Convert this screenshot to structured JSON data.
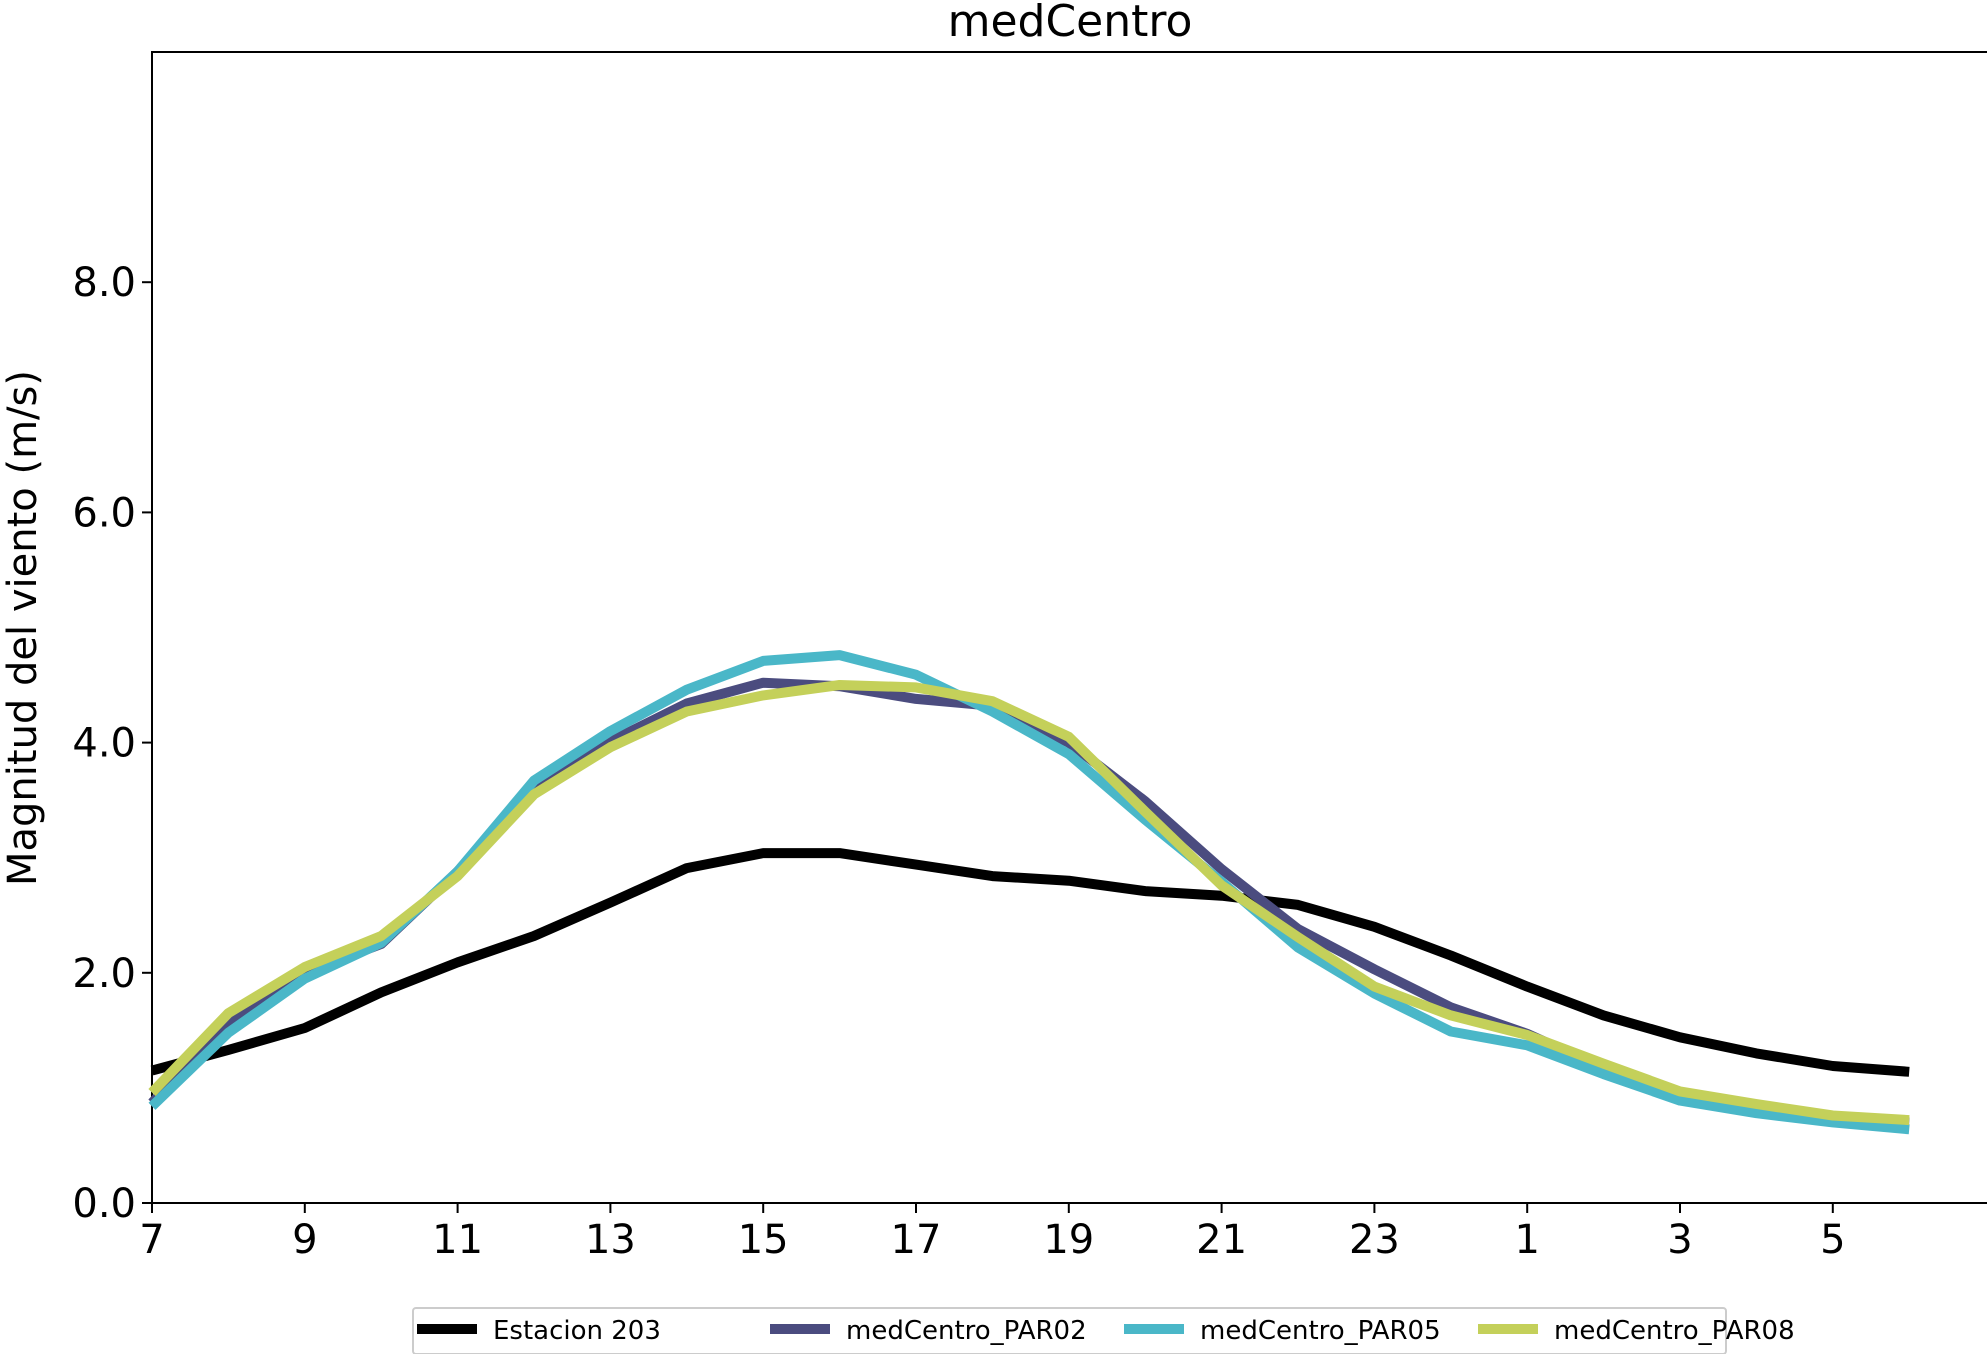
{
  "chart_data": {
    "type": "line",
    "title": "medCentro",
    "xlabel": "",
    "ylabel": "Magnitud del viento (m/s)",
    "x": [
      7,
      8,
      9,
      10,
      11,
      12,
      13,
      14,
      15,
      16,
      17,
      18,
      19,
      20,
      21,
      22,
      23,
      24,
      1,
      2,
      3,
      4,
      5,
      6
    ],
    "x_ticks": [
      "7",
      "9",
      "11",
      "13",
      "15",
      "17",
      "19",
      "21",
      "23",
      "1",
      "3",
      "5"
    ],
    "y_ticks": [
      "0.0",
      "2.0",
      "4.0",
      "6.0",
      "8.0"
    ],
    "ylim": [
      0,
      10
    ],
    "grid": false,
    "legend_position": "bottom-center",
    "series": [
      {
        "name": "Estacion 203",
        "color": "#000000",
        "values": [
          1.15,
          1.33,
          1.52,
          1.83,
          2.09,
          2.32,
          2.61,
          2.91,
          3.04,
          3.04,
          2.94,
          2.84,
          2.8,
          2.71,
          2.67,
          2.59,
          2.4,
          2.15,
          1.88,
          1.63,
          1.44,
          1.3,
          1.19,
          1.14
        ]
      },
      {
        "name": "medCentro_PAR02",
        "color": "#4b4c7f",
        "values": [
          0.87,
          1.57,
          2.0,
          2.25,
          2.88,
          3.6,
          4.01,
          4.34,
          4.52,
          4.49,
          4.38,
          4.32,
          4.0,
          3.49,
          2.9,
          2.38,
          2.03,
          1.7,
          1.47,
          1.17,
          0.94,
          0.82,
          0.74,
          0.7
        ]
      },
      {
        "name": "medCentro_PAR05",
        "color": "#4ab7c8",
        "values": [
          0.84,
          1.48,
          1.95,
          2.26,
          2.88,
          3.67,
          4.1,
          4.46,
          4.71,
          4.76,
          4.59,
          4.27,
          3.9,
          3.33,
          2.79,
          2.22,
          1.82,
          1.49,
          1.37,
          1.12,
          0.89,
          0.78,
          0.7,
          0.64
        ]
      },
      {
        "name": "medCentro_PAR08",
        "color": "#c4d05a",
        "values": [
          0.96,
          1.65,
          2.05,
          2.32,
          2.84,
          3.55,
          3.96,
          4.27,
          4.41,
          4.5,
          4.48,
          4.36,
          4.05,
          3.4,
          2.76,
          2.31,
          1.88,
          1.63,
          1.46,
          1.21,
          0.97,
          0.86,
          0.76,
          0.72
        ]
      }
    ]
  }
}
